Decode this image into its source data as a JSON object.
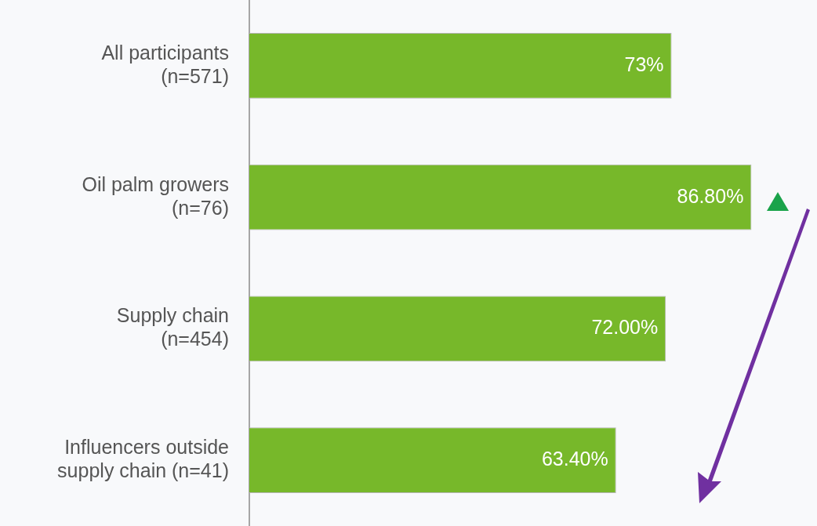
{
  "chart_data": {
    "type": "bar",
    "orientation": "horizontal",
    "categories": [
      "All participants\n(n=571)",
      "Oil palm growers\n(n=76)",
      "Supply chain\n(n=454)",
      "Influencers outside\nsupply chain (n=41)"
    ],
    "values": [
      73,
      86.8,
      72,
      63.4
    ],
    "value_labels": [
      "73%",
      "86.80%",
      "72.00%",
      "63.40%"
    ],
    "color": "#77b82a",
    "tick_labels": "y"
  }
}
